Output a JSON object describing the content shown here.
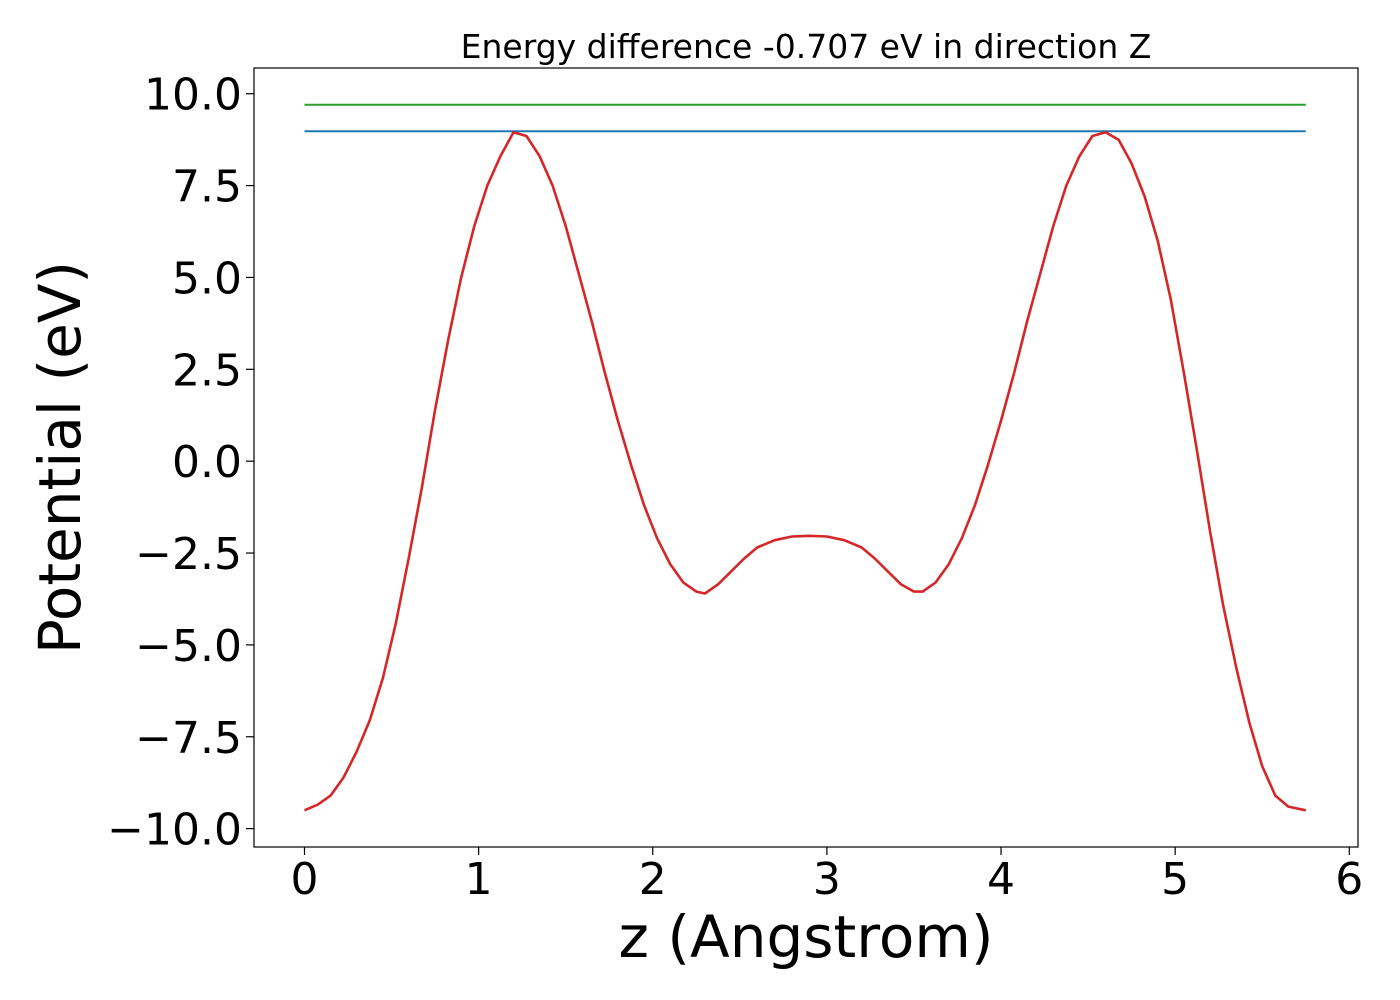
{
  "chart_data": {
    "type": "line",
    "title": "Energy difference -0.707 eV in direction Z",
    "xlabel": "z (Angstrom)",
    "ylabel": "Potential (eV)",
    "xlim": [
      -0.29,
      6.05
    ],
    "ylim": [
      -10.5,
      10.7
    ],
    "x_ticks": [
      0,
      1,
      2,
      3,
      4,
      5,
      6
    ],
    "x_tick_labels": [
      "0",
      "1",
      "2",
      "3",
      "4",
      "5",
      "6"
    ],
    "y_ticks": [
      -10,
      -7.5,
      -5,
      -2.5,
      0,
      2.5,
      5,
      7.5,
      10
    ],
    "y_tick_labels": [
      "−10.0",
      "−7.5",
      "−5.0",
      "−2.5",
      "0.0",
      "2.5",
      "5.0",
      "7.5",
      "10.0"
    ],
    "grid": false,
    "legend": "none",
    "series": [
      {
        "color": "#2ca02c",
        "x": [
          0,
          5.75
        ],
        "y": [
          9.7,
          9.7
        ]
      },
      {
        "color": "#1f77b4",
        "x": [
          0,
          5.75
        ],
        "y": [
          8.98,
          8.98
        ]
      },
      {
        "color": "#d62728",
        "x": [
          0,
          0.075,
          0.15,
          0.225,
          0.3,
          0.375,
          0.45,
          0.525,
          0.6,
          0.675,
          0.75,
          0.825,
          0.9,
          0.975,
          1.05,
          1.125,
          1.2,
          1.275,
          1.35,
          1.425,
          1.5,
          1.575,
          1.65,
          1.725,
          1.8,
          1.875,
          1.95,
          2.025,
          2.1,
          2.175,
          2.25,
          2.3,
          2.375,
          2.45,
          2.525,
          2.6,
          2.7,
          2.8,
          2.9,
          3.0,
          3.1,
          3.2,
          3.275,
          3.35,
          3.425,
          3.5,
          3.55,
          3.625,
          3.7,
          3.775,
          3.85,
          3.925,
          4.0,
          4.075,
          4.15,
          4.225,
          4.3,
          4.375,
          4.45,
          4.525,
          4.6,
          4.675,
          4.75,
          4.825,
          4.9,
          4.975,
          5.05,
          5.125,
          5.2,
          5.275,
          5.35,
          5.425,
          5.5,
          5.575,
          5.65,
          5.75
        ],
        "y": [
          -9.5,
          -9.35,
          -9.1,
          -8.6,
          -7.9,
          -7.05,
          -5.9,
          -4.4,
          -2.6,
          -0.7,
          1.4,
          3.3,
          5.0,
          6.4,
          7.5,
          8.3,
          8.95,
          8.85,
          8.3,
          7.5,
          6.4,
          5.1,
          3.8,
          2.4,
          1.1,
          -0.1,
          -1.2,
          -2.1,
          -2.8,
          -3.3,
          -3.55,
          -3.6,
          -3.35,
          -3.0,
          -2.65,
          -2.35,
          -2.15,
          -2.05,
          -2.03,
          -2.05,
          -2.15,
          -2.35,
          -2.65,
          -3.0,
          -3.35,
          -3.55,
          -3.55,
          -3.3,
          -2.8,
          -2.1,
          -1.2,
          -0.1,
          1.1,
          2.4,
          3.8,
          5.1,
          6.4,
          7.5,
          8.3,
          8.85,
          8.95,
          8.75,
          8.1,
          7.2,
          6.0,
          4.4,
          2.4,
          0.3,
          -1.9,
          -3.9,
          -5.6,
          -7.1,
          -8.3,
          -9.1,
          -9.4,
          -9.5
        ]
      }
    ]
  }
}
